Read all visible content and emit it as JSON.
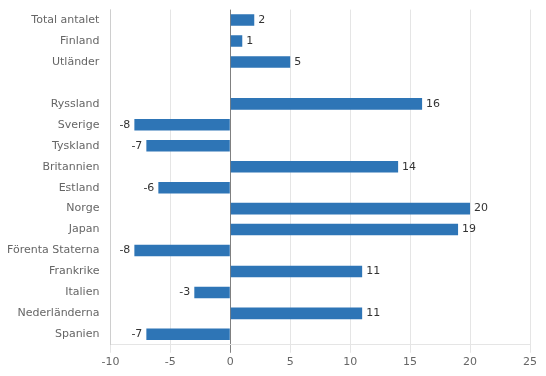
{
  "chart_data": {
    "type": "bar",
    "orientation": "horizontal",
    "categories": [
      "Spanien",
      "Nederländerna",
      "Italien",
      "Frankrike",
      "Förenta Staterna",
      "Japan",
      "Norge",
      "Estland",
      "Britannien",
      "Tyskland",
      "Sverige",
      "Ryssland",
      null,
      "Utländer",
      "Finland",
      "Total antalet"
    ],
    "values": [
      -7,
      11,
      -3,
      11,
      -8,
      19,
      20,
      -6,
      14,
      -7,
      -8,
      16,
      null,
      5,
      1,
      2
    ],
    "color": "#2E75B6",
    "xlim": [
      -10,
      25
    ],
    "xticks": [
      -10,
      -5,
      0,
      5,
      10,
      15,
      20,
      25
    ],
    "grid": true,
    "data_labels": true
  }
}
